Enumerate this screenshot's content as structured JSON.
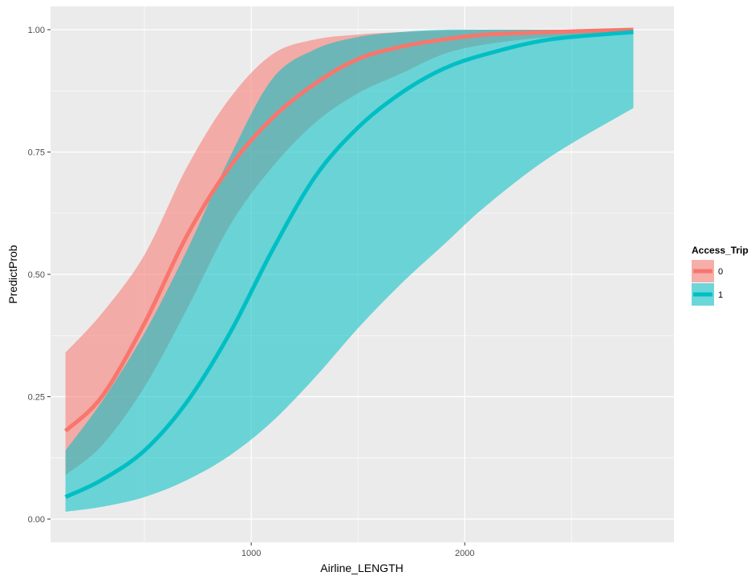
{
  "chart_data": {
    "type": "line",
    "xlabel": "Airline_LENGTH",
    "ylabel": "PredictProb",
    "xlim": [
      60,
      2980
    ],
    "ylim": [
      -0.0475,
      1.0475
    ],
    "x_ticks": [
      1000,
      2000
    ],
    "x_tick_labels": [
      "1000",
      "2000"
    ],
    "y_ticks": [
      0,
      0.25,
      0.5,
      0.75,
      1.0
    ],
    "y_tick_labels": [
      "0.00",
      "0.25",
      "0.50",
      "0.75",
      "1.00"
    ],
    "grid": true,
    "legend": {
      "title": "Access_Trip",
      "position": "right"
    },
    "series": [
      {
        "name": "0",
        "color": "#F8766D",
        "ribbon_color": "#F8766D",
        "x": [
          130,
          300,
          500,
          700,
          900,
          1100,
          1300,
          1500,
          1700,
          1900,
          2100,
          2400,
          2790
        ],
        "y": [
          0.18,
          0.25,
          0.4,
          0.58,
          0.72,
          0.82,
          0.89,
          0.94,
          0.965,
          0.98,
          0.99,
          0.995,
          1.0
        ],
        "lower": [
          0.09,
          0.15,
          0.27,
          0.43,
          0.6,
          0.72,
          0.81,
          0.87,
          0.91,
          0.95,
          0.97,
          0.985,
          0.995
        ],
        "upper": [
          0.34,
          0.42,
          0.54,
          0.72,
          0.86,
          0.95,
          0.98,
          0.99,
          0.995,
          0.998,
          1.0,
          1.0,
          1.0
        ]
      },
      {
        "name": "1",
        "color": "#00BFC4",
        "ribbon_color": "#00BFC4",
        "x": [
          130,
          300,
          500,
          700,
          900,
          1100,
          1300,
          1500,
          1700,
          1900,
          2100,
          2400,
          2790
        ],
        "y": [
          0.045,
          0.08,
          0.14,
          0.24,
          0.38,
          0.55,
          0.7,
          0.8,
          0.87,
          0.92,
          0.95,
          0.98,
          0.995
        ],
        "lower": [
          0.015,
          0.025,
          0.045,
          0.08,
          0.13,
          0.2,
          0.29,
          0.39,
          0.48,
          0.56,
          0.64,
          0.74,
          0.84
        ],
        "upper": [
          0.14,
          0.24,
          0.38,
          0.55,
          0.74,
          0.9,
          0.96,
          0.985,
          0.995,
          1.0,
          1.0,
          1.0,
          1.0
        ]
      }
    ]
  }
}
